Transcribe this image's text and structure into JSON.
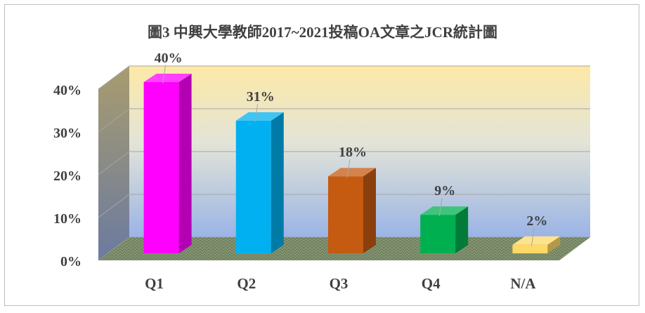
{
  "chart_data": {
    "type": "bar",
    "title": "圖3 中興大學教師2017~2021投稿OA文章之JCR統計圖",
    "categories": [
      "Q1",
      "Q2",
      "Q3",
      "Q4",
      "N/A"
    ],
    "values": [
      40,
      31,
      18,
      9,
      2
    ],
    "data_labels": [
      "40%",
      "31%",
      "18%",
      "9%",
      "2%"
    ],
    "yticks": [
      "0%",
      "10%",
      "20%",
      "30%",
      "40%"
    ],
    "ylim": [
      0,
      40
    ],
    "grid": true,
    "legend": "none",
    "colors": [
      "#ff00ff",
      "#00b0f0",
      "#c55a11",
      "#00b050",
      "#ffd966"
    ]
  }
}
